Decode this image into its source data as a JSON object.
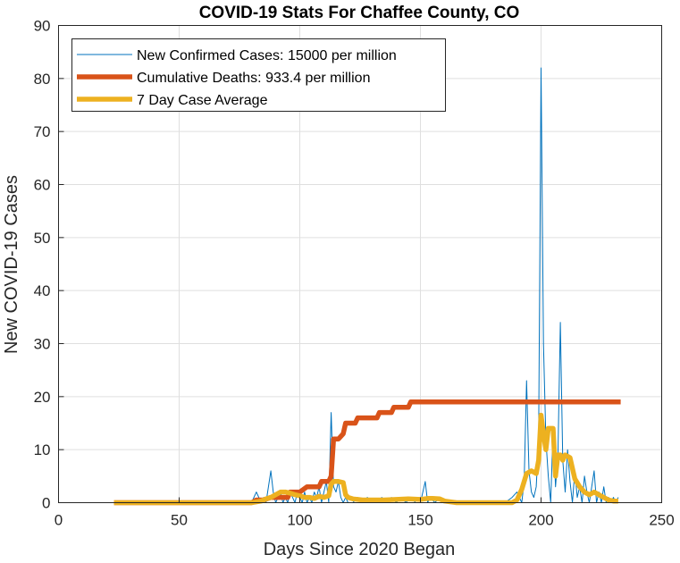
{
  "chart_data": {
    "type": "line",
    "title": "COVID-19 Stats For Chaffee County, CO",
    "xlabel": "Days Since 2020 Began",
    "ylabel": "New COVID-19 Cases",
    "xlim": [
      0,
      250
    ],
    "ylim": [
      0,
      90
    ],
    "xticks": [
      "0",
      "50",
      "100",
      "150",
      "200",
      "250"
    ],
    "yticks": [
      "0",
      "10",
      "20",
      "30",
      "40",
      "50",
      "60",
      "70",
      "80",
      "90"
    ],
    "grid": true,
    "legend_position": "top-left",
    "series": [
      {
        "name": "New Confirmed Cases: 15000 per million",
        "color": "#0072BD",
        "x": [
          23,
          30,
          40,
          50,
          60,
          70,
          80,
          82,
          84,
          85,
          86,
          87,
          88,
          89,
          90,
          91,
          92,
          93,
          94,
          95,
          96,
          97,
          98,
          99,
          100,
          101,
          102,
          103,
          104,
          105,
          106,
          107,
          108,
          109,
          110,
          111,
          112,
          113,
          114,
          115,
          116,
          117,
          118,
          119,
          120,
          122,
          124,
          126,
          128,
          130,
          132,
          134,
          136,
          138,
          140,
          142,
          144,
          146,
          148,
          150,
          152,
          153,
          154,
          156,
          158,
          160,
          165,
          170,
          175,
          180,
          185,
          188,
          190,
          192,
          193,
          194,
          195,
          196,
          197,
          198,
          199,
          200,
          201,
          202,
          203,
          204,
          205,
          206,
          207,
          208,
          209,
          210,
          211,
          212,
          213,
          214,
          215,
          216,
          217,
          218,
          219,
          220,
          221,
          222,
          223,
          224,
          225,
          226,
          227,
          228,
          229,
          230,
          231,
          232
        ],
        "values": [
          0,
          0,
          0,
          0,
          0,
          0,
          0,
          2,
          0,
          1,
          0,
          3,
          6,
          2,
          0,
          1,
          2,
          0,
          1,
          0,
          2,
          1,
          0,
          2,
          1,
          0,
          2,
          0,
          1,
          0,
          2,
          1,
          3,
          0,
          2,
          4,
          0,
          17,
          3,
          2,
          4,
          1,
          0,
          1,
          0,
          0,
          1,
          0,
          1,
          0,
          0,
          1,
          0,
          1,
          0,
          1,
          0,
          1,
          0,
          0,
          4,
          0,
          1,
          0,
          1,
          0,
          0,
          0,
          0,
          0,
          0,
          1,
          2,
          0,
          4,
          23,
          6,
          2,
          1,
          3,
          12,
          82,
          30,
          12,
          5,
          0,
          14,
          3,
          9,
          34,
          8,
          2,
          10,
          4,
          0,
          6,
          1,
          3,
          0,
          5,
          2,
          0,
          3,
          6,
          0,
          2,
          0,
          3,
          0,
          1,
          0,
          1,
          0,
          1
        ]
      },
      {
        "name": "Cumulative Deaths: 933.4 per million",
        "color": "#D95319",
        "x": [
          23,
          80,
          82,
          85,
          88,
          92,
          95,
          96,
          100,
          103,
          104,
          108,
          109,
          110,
          112,
          113,
          114,
          115,
          116,
          118,
          119,
          120,
          123,
          124,
          126,
          128,
          130,
          132,
          133,
          134,
          138,
          139,
          142,
          143,
          145,
          146,
          150,
          200,
          233
        ],
        "values": [
          0,
          0,
          0.5,
          0.5,
          1,
          1,
          1,
          2,
          2,
          3,
          3,
          3,
          4,
          4,
          4,
          5,
          12,
          12,
          12,
          13,
          15,
          15,
          15,
          16,
          16,
          16,
          16,
          16,
          17,
          17,
          17,
          18,
          18,
          18,
          18,
          19,
          19,
          19,
          19
        ]
      },
      {
        "name": "7 Day Case Average",
        "color": "#EDB120",
        "x": [
          23,
          30,
          40,
          50,
          60,
          70,
          80,
          84,
          86,
          88,
          90,
          92,
          94,
          96,
          98,
          100,
          102,
          104,
          106,
          108,
          110,
          112,
          113,
          114,
          116,
          118,
          119,
          120,
          122,
          124,
          126,
          128,
          130,
          135,
          140,
          145,
          150,
          153,
          155,
          158,
          160,
          165,
          170,
          175,
          180,
          185,
          188,
          190,
          192,
          194,
          196,
          198,
          199,
          200,
          201,
          202,
          203,
          205,
          206,
          207,
          208,
          209,
          210,
          212,
          214,
          216,
          218,
          220,
          222,
          224,
          226,
          228,
          230,
          232
        ],
        "values": [
          0,
          0,
          0,
          0,
          0,
          0,
          0,
          0.3,
          0.7,
          1,
          1.5,
          2,
          2,
          1.8,
          1.5,
          1.3,
          1,
          1,
          0.8,
          1.2,
          1,
          1.3,
          3.5,
          4,
          4,
          3.8,
          1.5,
          1,
          0.7,
          0.6,
          0.5,
          0.5,
          0.5,
          0.5,
          0.6,
          0.7,
          0.6,
          0.8,
          0.8,
          0.7,
          0.3,
          0,
          0,
          0,
          0,
          0,
          0,
          0.5,
          2.5,
          5.5,
          6,
          5.5,
          8,
          16.5,
          13,
          10,
          14,
          14,
          5,
          9,
          9,
          8,
          9,
          8.5,
          4.5,
          3,
          2,
          1.5,
          2,
          1.5,
          1,
          0.5,
          0.3,
          0.3
        ]
      }
    ]
  }
}
